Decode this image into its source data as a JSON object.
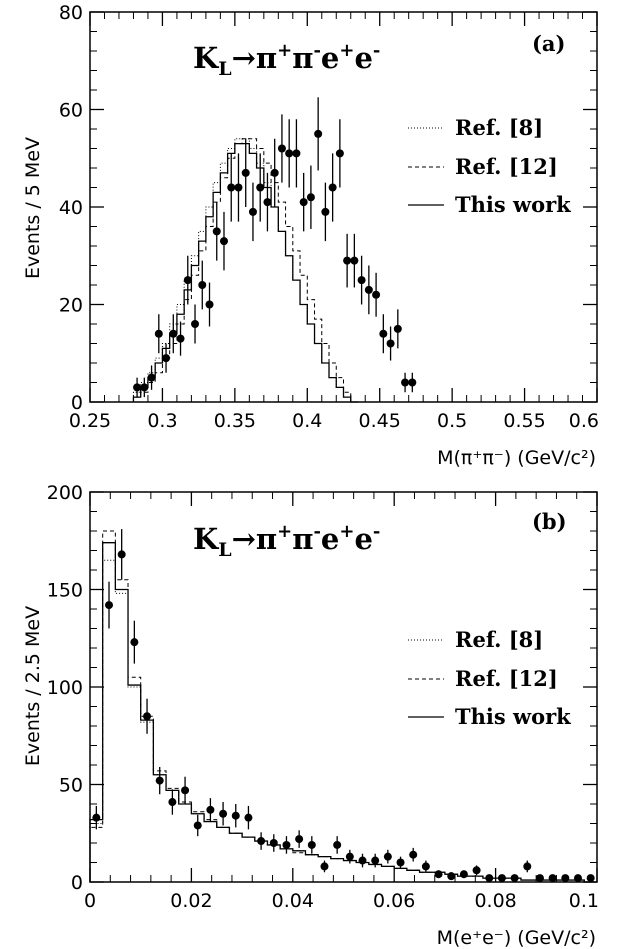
{
  "chart_data": [
    {
      "type": "histogram",
      "panel_label": "(a)",
      "process_title": "K_L→π⁺π⁻e⁺e⁻",
      "xlabel": "M(π⁺π⁻)  (GeV/c²)",
      "ylabel": "Events / 5 MeV",
      "xlim": [
        0.25,
        0.6
      ],
      "ylim": [
        0,
        80
      ],
      "xticks": [
        0.25,
        0.3,
        0.35,
        0.4,
        0.45,
        0.5,
        0.55,
        0.6
      ],
      "yticks": [
        0,
        20,
        40,
        60,
        80
      ],
      "xtick_labels": [
        "0.25",
        "0.3",
        "0.35",
        "0.4",
        "0.45",
        "0.5",
        "0.55",
        "0.6"
      ],
      "ytick_labels": [
        "0",
        "20",
        "40",
        "60",
        "80"
      ],
      "bin_width": 0.005,
      "legend_position": "right",
      "legend": [
        {
          "label": "Ref. [8]",
          "style": "dotted"
        },
        {
          "label": "Ref. [12]",
          "style": "dashed"
        },
        {
          "label": "This work",
          "style": "solid"
        }
      ],
      "series": [
        {
          "name": "Ref. [8]",
          "style": "dotted",
          "bin_start": 0.28,
          "values": [
            2,
            4,
            6,
            9,
            12,
            16,
            20,
            25,
            30,
            35,
            40,
            45,
            49,
            52,
            54,
            54,
            52,
            49,
            45,
            40,
            35,
            30,
            25,
            20,
            16,
            12,
            8,
            5,
            3,
            1,
            0
          ]
        },
        {
          "name": "Ref. [12]",
          "style": "dashed",
          "bin_start": 0.28,
          "values": [
            1,
            2,
            4,
            6,
            9,
            12,
            16,
            21,
            26,
            31,
            36,
            41,
            46,
            50,
            53,
            54,
            54,
            52,
            49,
            45,
            41,
            36,
            31,
            26,
            21,
            17,
            12,
            8,
            5,
            2,
            0
          ]
        },
        {
          "name": "This work",
          "style": "solid",
          "bin_start": 0.28,
          "values": [
            1,
            3,
            5,
            8,
            11,
            14,
            18,
            23,
            28,
            33,
            38,
            43,
            47,
            51,
            53,
            53,
            51,
            48,
            44,
            40,
            35,
            30,
            25,
            20,
            16,
            12,
            8,
            5,
            3,
            1,
            0
          ]
        },
        {
          "name": "Data",
          "x": [
            0.2825,
            0.2875,
            0.2925,
            0.2975,
            0.3025,
            0.3075,
            0.3125,
            0.3175,
            0.3225,
            0.3275,
            0.3325,
            0.3375,
            0.3425,
            0.3475,
            0.3525,
            0.3575,
            0.3625,
            0.3675,
            0.3725,
            0.3775,
            0.3825,
            0.3875,
            0.3925,
            0.3975,
            0.4025,
            0.4075,
            0.4125,
            0.4175,
            0.4225,
            0.4275,
            0.4325,
            0.4375,
            0.4425,
            0.4475,
            0.4525,
            0.4575,
            0.4625,
            0.4675,
            0.4725
          ],
          "y": [
            3,
            3,
            5,
            14,
            9,
            14,
            13,
            25,
            16,
            24,
            20,
            35,
            33,
            44,
            44,
            47,
            39,
            44,
            41,
            47,
            52,
            51,
            51,
            41,
            42,
            55,
            39,
            44,
            51,
            29,
            29,
            25,
            23,
            22,
            14,
            12,
            15,
            4,
            4
          ],
          "err": [
            2,
            2,
            2.5,
            4,
            3,
            4,
            3.5,
            5,
            4,
            5,
            4.5,
            6,
            6,
            7,
            7,
            7,
            6,
            7,
            6,
            7,
            7,
            7,
            7,
            6,
            6.5,
            7.5,
            6,
            7,
            7,
            5.5,
            5.5,
            5,
            5,
            4.5,
            4,
            3.5,
            4,
            2,
            2
          ]
        }
      ]
    },
    {
      "type": "histogram",
      "panel_label": "(b)",
      "process_title": "K_L→π⁺π⁻e⁺e⁻",
      "xlabel": "M(e⁺e⁻)  (GeV/c²)",
      "ylabel": "Events / 2.5 MeV",
      "xlim": [
        0,
        0.1
      ],
      "ylim": [
        0,
        200
      ],
      "xticks": [
        0,
        0.02,
        0.04,
        0.06,
        0.08,
        0.1
      ],
      "yticks": [
        0,
        50,
        100,
        150,
        200
      ],
      "xtick_labels": [
        "0",
        "0.02",
        "0.04",
        "0.06",
        "0.08",
        "0.1"
      ],
      "ytick_labels": [
        "0",
        "50",
        "100",
        "150",
        "200"
      ],
      "bin_width": 0.0025,
      "legend_position": "right",
      "legend": [
        {
          "label": "Ref. [8]",
          "style": "dotted"
        },
        {
          "label": "Ref. [12]",
          "style": "dashed"
        },
        {
          "label": "This work",
          "style": "solid"
        }
      ],
      "series": [
        {
          "name": "Ref. [8]",
          "style": "dotted",
          "bin_start": 0,
          "values": [
            30,
            165,
            148,
            100,
            82,
            55,
            47,
            40,
            35,
            31,
            28,
            25,
            23,
            21,
            19,
            17,
            16,
            14,
            13,
            12,
            11,
            10,
            9,
            8,
            7,
            6,
            5,
            5,
            4,
            3,
            3,
            2,
            2,
            2,
            1,
            1,
            1,
            1,
            1,
            0
          ]
        },
        {
          "name": "Ref. [12]",
          "style": "dashed",
          "bin_start": 0,
          "values": [
            28,
            180,
            155,
            105,
            85,
            57,
            48,
            41,
            36,
            32,
            28,
            25,
            23,
            21,
            19,
            17,
            15,
            14,
            13,
            12,
            11,
            10,
            9,
            8,
            7,
            6,
            5,
            5,
            4,
            3,
            3,
            2,
            2,
            2,
            1,
            1,
            1,
            1,
            1,
            0
          ]
        },
        {
          "name": "This work",
          "style": "solid",
          "bin_start": 0,
          "values": [
            32,
            174,
            150,
            101,
            83,
            55,
            47,
            40,
            35,
            31,
            28,
            25,
            23,
            21,
            19,
            17,
            16,
            14,
            13,
            12,
            11,
            10,
            9,
            8,
            7,
            6,
            5,
            5,
            4,
            3,
            3,
            2,
            2,
            2,
            1,
            1,
            1,
            1,
            1,
            0
          ]
        },
        {
          "name": "Data",
          "x": [
            0.00125,
            0.00375,
            0.00625,
            0.00875,
            0.01125,
            0.01375,
            0.01625,
            0.01875,
            0.02125,
            0.02375,
            0.02625,
            0.02875,
            0.03125,
            0.03375,
            0.03625,
            0.03875,
            0.04125,
            0.04375,
            0.04625,
            0.04875,
            0.05125,
            0.05375,
            0.05625,
            0.05875,
            0.06125,
            0.06375,
            0.06625,
            0.06875,
            0.07125,
            0.07375,
            0.07625,
            0.07875,
            0.08125,
            0.08375,
            0.08625,
            0.08875,
            0.09125,
            0.09375,
            0.09625,
            0.09875
          ],
          "y": [
            33,
            142,
            168,
            123,
            85,
            52,
            41,
            47,
            29,
            37,
            35,
            34,
            33,
            21,
            20,
            19,
            22,
            19,
            8,
            19,
            13,
            11,
            11,
            13,
            10,
            14,
            8,
            4,
            3,
            4,
            6,
            2,
            2,
            2,
            8,
            2,
            2,
            2,
            2,
            2
          ],
          "err": [
            6,
            12,
            13,
            11,
            9,
            7,
            6.5,
            7,
            5.5,
            6,
            6,
            6,
            6,
            4.5,
            4.5,
            4.5,
            4.5,
            4.5,
            3,
            4.5,
            3.5,
            3.5,
            3.5,
            3.5,
            3,
            3.5,
            3,
            2,
            2,
            2,
            2.5,
            1.5,
            1.5,
            1.5,
            3,
            1.5,
            1.5,
            1.5,
            1.5,
            1.5
          ]
        }
      ]
    }
  ]
}
